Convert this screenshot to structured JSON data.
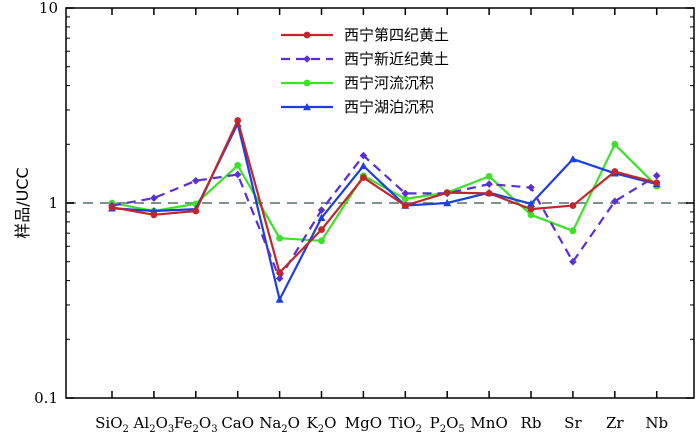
{
  "chart_data": {
    "type": "line",
    "title": "",
    "ylabel": "样品/UCC",
    "xlabel": "",
    "yscale": "log",
    "ylim": [
      0.1,
      10
    ],
    "y_ticks": [
      "0.1",
      "1",
      "10"
    ],
    "reference_line": {
      "y": 1,
      "style": "dashed",
      "color": "#7f9190"
    },
    "categories": [
      {
        "main": "SiO",
        "sub": "2",
        "tail": ""
      },
      {
        "main": "Al",
        "sub": "2",
        "tail": "O",
        "sub2": "3"
      },
      {
        "main": "Fe",
        "sub": "2",
        "tail": "O",
        "sub2": "3"
      },
      {
        "main": "CaO",
        "sub": "",
        "tail": ""
      },
      {
        "main": "Na",
        "sub": "2",
        "tail": "O"
      },
      {
        "main": "K",
        "sub": "2",
        "tail": "O"
      },
      {
        "main": "MgO",
        "sub": "",
        "tail": ""
      },
      {
        "main": "TiO",
        "sub": "2",
        "tail": ""
      },
      {
        "main": "P",
        "sub": "2",
        "tail": "O",
        "sub2": "5"
      },
      {
        "main": "MnO",
        "sub": "",
        "tail": ""
      },
      {
        "main": "Rb",
        "sub": "",
        "tail": ""
      },
      {
        "main": "Sr",
        "sub": "",
        "tail": ""
      },
      {
        "main": "Zr",
        "sub": "",
        "tail": ""
      },
      {
        "main": "Nb",
        "sub": "",
        "tail": ""
      }
    ],
    "legend_position": "top-center",
    "series": [
      {
        "name": "西宁第四纪黄土",
        "color": "#c0272d",
        "dash": "solid",
        "marker": "circle",
        "values": [
          0.95,
          0.87,
          0.91,
          2.65,
          0.44,
          0.73,
          1.35,
          0.97,
          1.13,
          1.12,
          0.93,
          0.97,
          1.45,
          1.27
        ]
      },
      {
        "name": "西宁新近纪黄土",
        "color": "#5b2fd6",
        "dash": "dashed",
        "marker": "diamond",
        "values": [
          0.97,
          1.06,
          1.3,
          1.4,
          0.41,
          0.92,
          1.75,
          1.12,
          1.12,
          1.25,
          1.2,
          0.5,
          1.02,
          1.38
        ]
      },
      {
        "name": "西宁河流沉积",
        "color": "#3ee02a",
        "dash": "solid",
        "marker": "circle",
        "values": [
          1.0,
          0.91,
          0.99,
          1.56,
          0.66,
          0.64,
          1.38,
          1.05,
          1.13,
          1.37,
          0.87,
          0.72,
          2.0,
          1.22
        ]
      },
      {
        "name": "西宁湖泊沉积",
        "color": "#1d3fdc",
        "dash": "solid",
        "marker": "triangle",
        "values": [
          0.94,
          0.91,
          0.93,
          2.55,
          0.32,
          0.84,
          1.55,
          0.97,
          1.0,
          1.13,
          0.99,
          1.68,
          1.42,
          1.25
        ]
      }
    ]
  }
}
